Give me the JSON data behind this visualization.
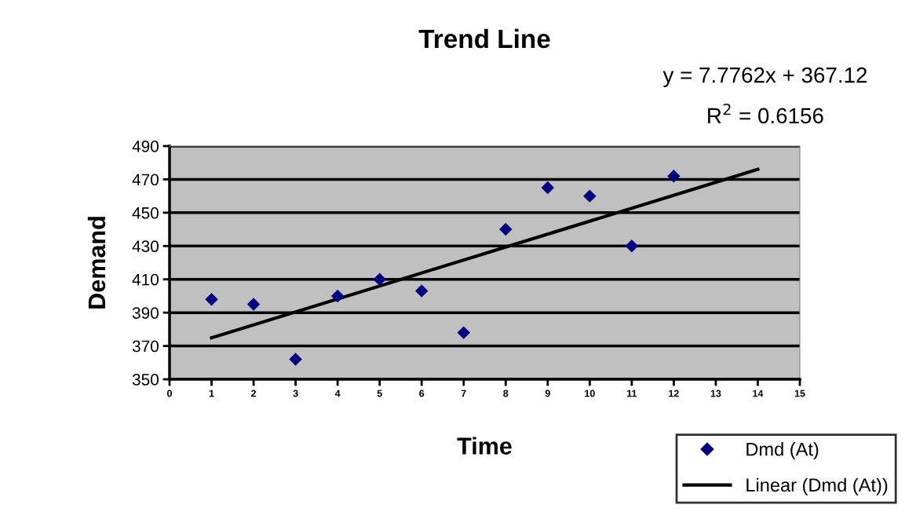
{
  "chart_data": {
    "type": "scatter",
    "title": "Trend Line",
    "xlabel": "Time",
    "ylabel": "Demand",
    "x": [
      1,
      2,
      3,
      4,
      5,
      6,
      7,
      8,
      9,
      10,
      11,
      12
    ],
    "series": [
      {
        "name": "Dmd (At)",
        "color": "#000080",
        "values": [
          398,
          395,
          362,
          400,
          410,
          403,
          378,
          440,
          465,
          460,
          430,
          472
        ],
        "marker": "diamond"
      },
      {
        "name": "Linear (Dmd (At))",
        "type": "line",
        "color": "#000000",
        "x": [
          1,
          14
        ],
        "values": [
          374.9,
          476.0
        ],
        "marker": "none",
        "line_style": "solid"
      }
    ],
    "annotations": [
      "y = 7.7762x + 367.12",
      "R$^{2}$ = 0.6156"
    ],
    "xlim": [
      0,
      15
    ],
    "xticks": [
      0,
      1,
      2,
      3,
      4,
      5,
      6,
      7,
      8,
      9,
      10,
      11,
      12,
      13,
      14,
      15
    ],
    "ylim": [
      350,
      490
    ],
    "yticks": [
      350,
      370,
      390,
      410,
      430,
      450,
      470,
      490
    ],
    "grid": "y",
    "legend": "bottom right"
  }
}
